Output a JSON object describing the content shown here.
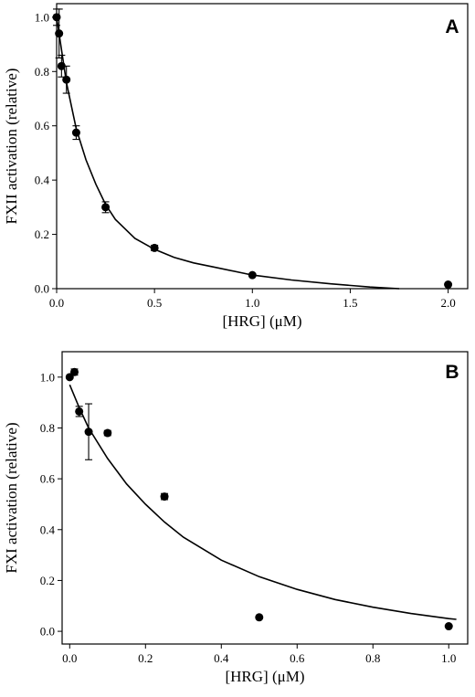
{
  "chart_data": [
    {
      "panel": "A",
      "type": "scatter",
      "xlabel": "[HRG] (μM)",
      "ylabel": "FXII activation (relative)",
      "xlim": [
        0,
        2.1
      ],
      "ylim": [
        0,
        1.05
      ],
      "xticks": [
        "0.0",
        "0.5",
        "1.0",
        "1.5",
        "2.0"
      ],
      "yticks": [
        "0.0",
        "0.2",
        "0.4",
        "0.6",
        "0.8",
        "1.0"
      ],
      "grid": false,
      "points": [
        {
          "x": 0.0,
          "y": 1.0,
          "err": 0.03
        },
        {
          "x": 0.0125,
          "y": 0.94,
          "err": 0.09
        },
        {
          "x": 0.025,
          "y": 0.82,
          "err": 0.04
        },
        {
          "x": 0.05,
          "y": 0.77,
          "err": 0.05
        },
        {
          "x": 0.1,
          "y": 0.575,
          "err": 0.025
        },
        {
          "x": 0.25,
          "y": 0.3,
          "err": 0.02
        },
        {
          "x": 0.5,
          "y": 0.15,
          "err": 0.01
        },
        {
          "x": 1.0,
          "y": 0.05,
          "err": 0.0
        },
        {
          "x": 2.0,
          "y": 0.015,
          "err": 0.0
        }
      ],
      "fit": {
        "x": [
          0,
          0.05,
          0.1,
          0.15,
          0.2,
          0.25,
          0.3,
          0.4,
          0.5,
          0.6,
          0.7,
          0.8,
          1.0,
          1.2,
          1.4,
          1.6,
          1.75
        ],
        "y": [
          1.0,
          0.76,
          0.59,
          0.475,
          0.385,
          0.31,
          0.255,
          0.185,
          0.145,
          0.115,
          0.095,
          0.08,
          0.05,
          0.032,
          0.018,
          0.006,
          0.0
        ]
      }
    },
    {
      "panel": "B",
      "type": "scatter",
      "xlabel": "[HRG] (μM)",
      "ylabel": "FXI activation (relative)",
      "xlim": [
        -0.02,
        1.05
      ],
      "ylim": [
        -0.05,
        1.1
      ],
      "xticks": [
        "0.0",
        "0.2",
        "0.4",
        "0.6",
        "0.8",
        "1.0"
      ],
      "yticks": [
        "0.0",
        "0.2",
        "0.4",
        "0.6",
        "0.8",
        "1.0"
      ],
      "grid": false,
      "points": [
        {
          "x": 0.0,
          "y": 1.0,
          "err": 0.0
        },
        {
          "x": 0.0125,
          "y": 1.02,
          "err": 0.012
        },
        {
          "x": 0.025,
          "y": 0.865,
          "err": 0.02
        },
        {
          "x": 0.05,
          "y": 0.785,
          "err": 0.11
        },
        {
          "x": 0.1,
          "y": 0.78,
          "err": 0.01
        },
        {
          "x": 0.25,
          "y": 0.53,
          "err": 0.012
        },
        {
          "x": 0.5,
          "y": 0.055,
          "err": 0.0
        },
        {
          "x": 1.0,
          "y": 0.02,
          "err": 0.0
        }
      ],
      "fit": {
        "x": [
          0,
          0.025,
          0.05,
          0.1,
          0.15,
          0.2,
          0.25,
          0.3,
          0.4,
          0.5,
          0.6,
          0.7,
          0.8,
          0.9,
          1.0,
          1.02
        ],
        "y": [
          0.97,
          0.88,
          0.8,
          0.68,
          0.58,
          0.5,
          0.43,
          0.37,
          0.28,
          0.215,
          0.165,
          0.125,
          0.095,
          0.07,
          0.05,
          0.047
        ]
      }
    }
  ]
}
